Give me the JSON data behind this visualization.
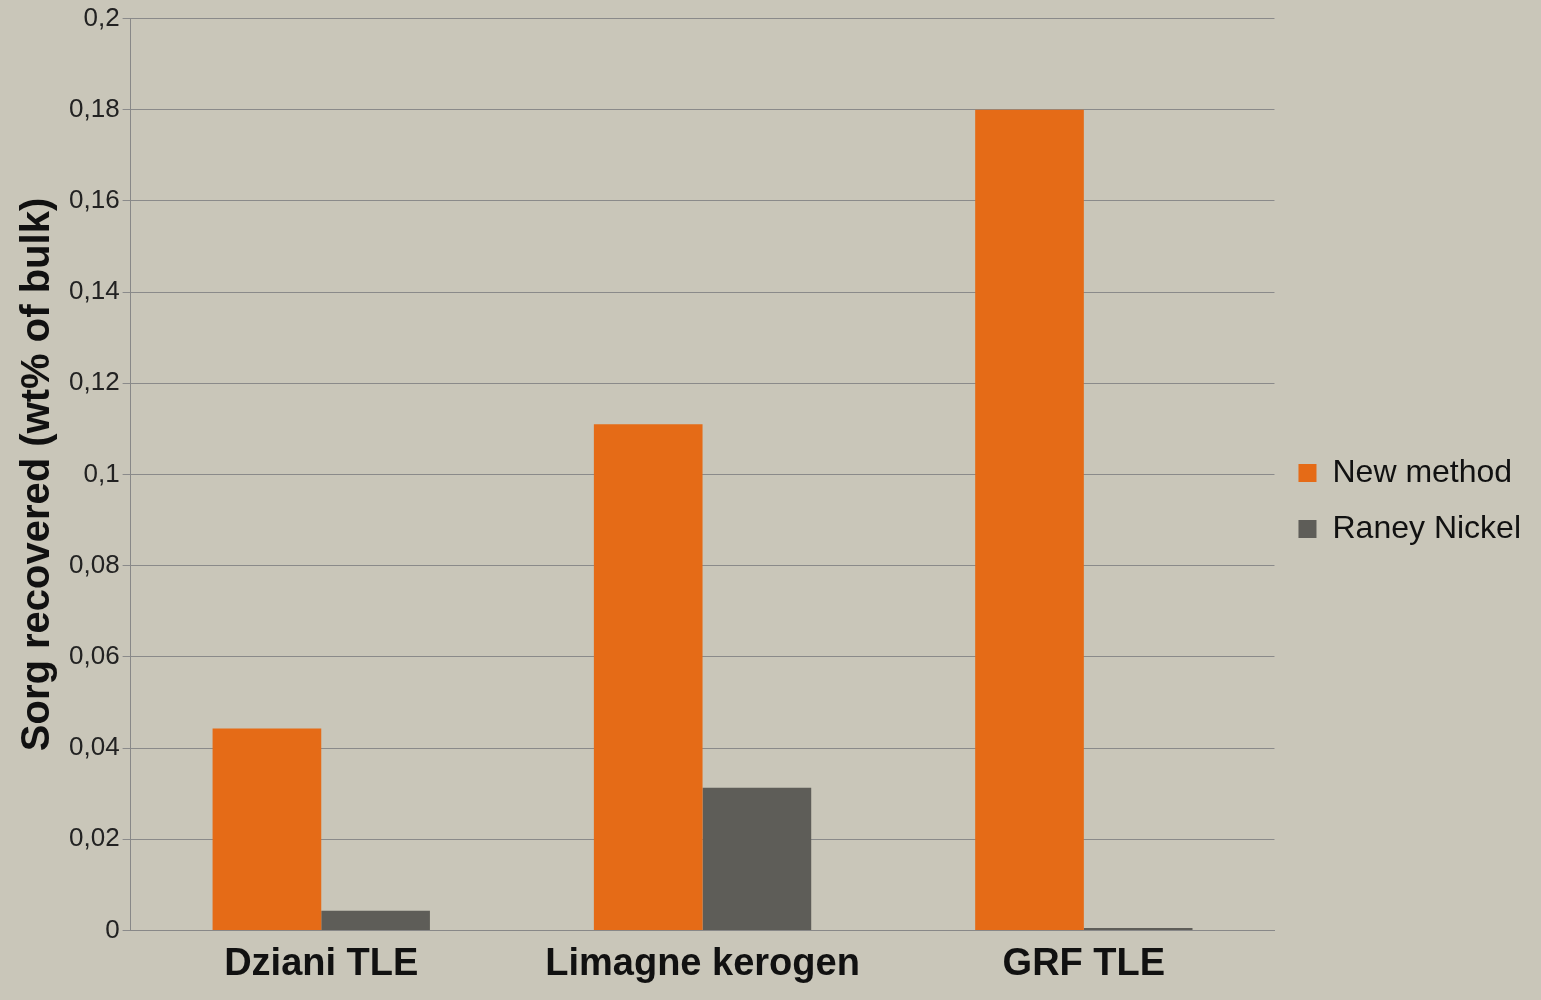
{
  "chart_data": {
    "type": "bar",
    "ylabel": "Sorg recovered (wt% of bulk)",
    "categories": [
      "Dziani TLE",
      "Limagne kerogen",
      "GRF TLE"
    ],
    "series": [
      {
        "name": "New method",
        "color": "#e56b17",
        "values": [
          0.0443,
          0.111,
          0.18
        ]
      },
      {
        "name": "Raney Nickel",
        "color": "#5e5d58",
        "values": [
          0.0043,
          0.0313,
          0.0005
        ]
      }
    ],
    "ylim": [
      0,
      0.2
    ],
    "yticks": [
      {
        "value": 0,
        "label": "0"
      },
      {
        "value": 0.02,
        "label": "0,02"
      },
      {
        "value": 0.04,
        "label": "0,04"
      },
      {
        "value": 0.06,
        "label": "0,06"
      },
      {
        "value": 0.08,
        "label": "0,08"
      },
      {
        "value": 0.1,
        "label": "0,1"
      },
      {
        "value": 0.12,
        "label": "0,12"
      },
      {
        "value": 0.14,
        "label": "0,14"
      },
      {
        "value": 0.16,
        "label": "0,16"
      },
      {
        "value": 0.18,
        "label": "0,18"
      },
      {
        "value": 0.2,
        "label": "0,2"
      }
    ],
    "grid": "y",
    "legend": "right"
  }
}
